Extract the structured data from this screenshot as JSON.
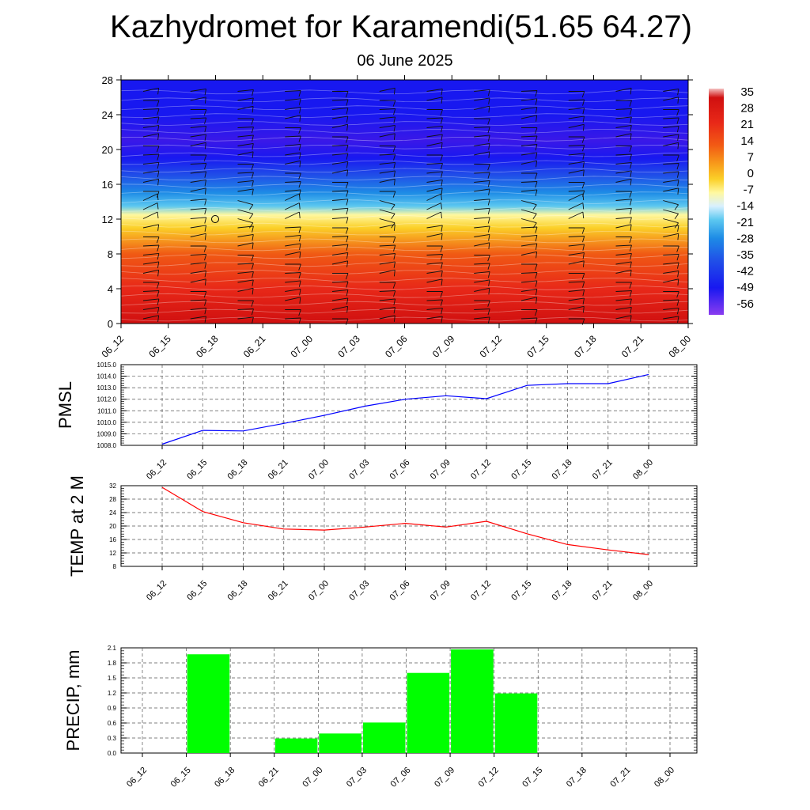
{
  "title": "Kazhydromet for Karamendi(51.65 64.27)",
  "subtitle": "06 June 2025",
  "chart_data": [
    {
      "type": "heatmap",
      "description_of_field": "temperature vs height with wind barbs",
      "x_tick_labels": [
        "06_12",
        "06_15",
        "06_18",
        "06_21",
        "07_00",
        "07_03",
        "07_06",
        "07_09",
        "07_12",
        "07_15",
        "07_18",
        "07_21",
        "08_00"
      ],
      "y_ticks": [
        0,
        4,
        8,
        12,
        16,
        20,
        24,
        28
      ],
      "ylim": [
        0,
        28
      ],
      "colorbar_labels": [
        "35",
        "28",
        "21",
        "14",
        "7",
        "0",
        "-7",
        "-14",
        "-21",
        "-28",
        "-35",
        "-42",
        "-49",
        "-56"
      ],
      "colorbar_colors": [
        "#f4b4b4",
        "#d01010",
        "#e82818",
        "#f05a14",
        "#f7991a",
        "#fbd028",
        "#fff8a0",
        "#d8f0ff",
        "#5cc8f0",
        "#1e8ce6",
        "#2050e8",
        "#1818f0",
        "#3a18e8",
        "#8a3cf0"
      ],
      "temperature_by_height": [
        {
          "h": 0,
          "t": 30
        },
        {
          "h": 4,
          "t": 24
        },
        {
          "h": 8,
          "t": 14
        },
        {
          "h": 11,
          "t": 4
        },
        {
          "h": 12.5,
          "t": -5
        },
        {
          "h": 13.5,
          "t": -15
        },
        {
          "h": 15,
          "t": -22
        },
        {
          "h": 17,
          "t": -32
        },
        {
          "h": 19,
          "t": -45
        },
        {
          "h": 21,
          "t": -55
        },
        {
          "h": 24,
          "t": -50
        },
        {
          "h": 28,
          "t": -47
        }
      ]
    },
    {
      "type": "line",
      "ylabel": "PMSL",
      "x": [
        "06_12",
        "06_15",
        "06_18",
        "06_21",
        "07_00",
        "07_03",
        "07_06",
        "07_09",
        "07_12",
        "07_15",
        "07_18",
        "07_21",
        "08_00"
      ],
      "ylim": [
        1008.0,
        1015.0
      ],
      "y_tick_labels": [
        "1015.0",
        "1014.0",
        "1013.0",
        "1012.0",
        "1011.0",
        "1010.0",
        "1009.0",
        "1008.0"
      ],
      "series": [
        {
          "values": [
            1008.1,
            1009.3,
            1009.25,
            1009.9,
            1010.6,
            1011.4,
            1012.0,
            1012.3,
            1012.05,
            1013.2,
            1013.35,
            1013.35,
            1014.15
          ],
          "color": "#0000ff"
        }
      ]
    },
    {
      "type": "line",
      "ylabel": "TEMP at 2 M",
      "x": [
        "06_12",
        "06_15",
        "06_18",
        "06_21",
        "07_00",
        "07_03",
        "07_06",
        "07_09",
        "07_12",
        "07_15",
        "07_18",
        "07_21",
        "08_00"
      ],
      "ylim": [
        8,
        32
      ],
      "y_tick_labels": [
        "32",
        "28",
        "24",
        "20",
        "16",
        "12",
        "8"
      ],
      "series": [
        {
          "values": [
            31.5,
            24.3,
            21.0,
            19.1,
            18.8,
            19.7,
            20.8,
            19.7,
            21.4,
            17.7,
            14.5,
            12.9,
            11.5
          ],
          "color": "#ff0000"
        }
      ]
    },
    {
      "type": "bar",
      "ylabel": "PRECIP, mm",
      "categories": [
        "06_12",
        "06_15",
        "06_18",
        "06_21",
        "07_00",
        "07_03",
        "07_06",
        "07_09",
        "07_12",
        "07_15",
        "07_18",
        "07_21",
        "08_00"
      ],
      "values": [
        0,
        1.97,
        0,
        0.29,
        0.39,
        0.61,
        1.6,
        2.07,
        1.19,
        0,
        0,
        0,
        0
      ],
      "ylim": [
        0,
        2.1
      ],
      "y_tick_labels": [
        "2.1",
        "1.8",
        "1.5",
        "1.2",
        "0.9",
        "0.6",
        "0.3",
        "0.0"
      ],
      "color": "#00ff00"
    }
  ]
}
